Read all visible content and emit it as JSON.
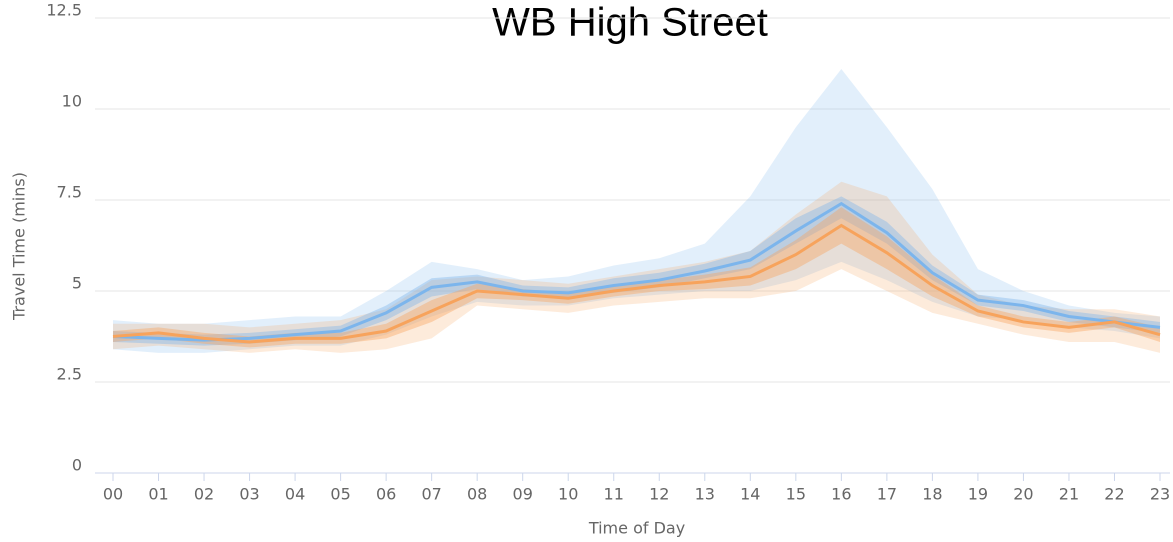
{
  "chart_data": {
    "type": "line",
    "title": "WB High Street",
    "x_label": "Time of Day",
    "y_label": "Travel Time (mins)",
    "categories": [
      "00",
      "01",
      "02",
      "03",
      "04",
      "05",
      "06",
      "07",
      "08",
      "09",
      "10",
      "11",
      "12",
      "13",
      "14",
      "15",
      "16",
      "17",
      "18",
      "19",
      "20",
      "21",
      "22",
      "23"
    ],
    "ylim": [
      0,
      12.5
    ],
    "yticks": [
      0,
      2.5,
      5,
      7.5,
      10,
      12.5
    ],
    "grid": true,
    "series": [
      {
        "color": "#7cb5ec",
        "values": [
          3.75,
          3.7,
          3.65,
          3.7,
          3.8,
          3.9,
          4.4,
          5.1,
          5.25,
          5.0,
          4.95,
          5.15,
          5.3,
          5.55,
          5.85,
          6.65,
          7.4,
          6.6,
          5.5,
          4.75,
          4.6,
          4.3,
          4.15,
          4.0
        ],
        "inner_high": [
          3.9,
          3.85,
          3.8,
          3.85,
          3.95,
          4.05,
          4.6,
          5.35,
          5.45,
          5.15,
          5.1,
          5.35,
          5.5,
          5.75,
          6.1,
          7.0,
          7.6,
          6.9,
          5.7,
          4.9,
          4.75,
          4.45,
          4.3,
          4.15
        ],
        "inner_low": [
          3.6,
          3.55,
          3.5,
          3.55,
          3.65,
          3.75,
          4.2,
          4.85,
          5.05,
          4.85,
          4.8,
          4.95,
          5.1,
          5.35,
          5.6,
          6.3,
          7.0,
          6.3,
          5.3,
          4.6,
          4.45,
          4.15,
          4.0,
          3.85
        ],
        "outer_high": [
          4.2,
          4.1,
          4.1,
          4.2,
          4.3,
          4.3,
          5.0,
          5.8,
          5.6,
          5.3,
          5.4,
          5.7,
          5.9,
          6.3,
          7.6,
          9.5,
          11.1,
          9.5,
          7.8,
          5.6,
          5.0,
          4.6,
          4.4,
          4.3
        ],
        "outer_low": [
          3.4,
          3.3,
          3.3,
          3.4,
          3.5,
          3.5,
          3.8,
          4.3,
          4.7,
          4.6,
          4.6,
          4.8,
          4.9,
          5.0,
          5.0,
          5.3,
          5.8,
          5.3,
          4.7,
          4.3,
          4.2,
          4.0,
          3.9,
          3.7
        ]
      },
      {
        "color": "#f7a35c",
        "values": [
          3.75,
          3.85,
          3.7,
          3.6,
          3.7,
          3.7,
          3.9,
          4.45,
          5.0,
          4.9,
          4.8,
          5.0,
          5.15,
          5.25,
          5.4,
          6.0,
          6.8,
          6.05,
          5.15,
          4.45,
          4.15,
          4.0,
          4.15,
          3.8
        ],
        "inner_high": [
          3.9,
          4.0,
          3.85,
          3.75,
          3.85,
          3.85,
          4.1,
          4.75,
          5.2,
          5.05,
          4.95,
          5.15,
          5.3,
          5.45,
          5.65,
          6.4,
          7.3,
          6.5,
          5.45,
          4.6,
          4.3,
          4.15,
          4.3,
          4.0
        ],
        "inner_low": [
          3.6,
          3.7,
          3.55,
          3.45,
          3.55,
          3.55,
          3.7,
          4.15,
          4.8,
          4.75,
          4.65,
          4.85,
          5.0,
          5.05,
          5.15,
          5.6,
          6.3,
          5.6,
          4.85,
          4.3,
          4.0,
          3.85,
          4.0,
          3.6
        ],
        "outer_high": [
          4.1,
          4.1,
          4.1,
          4.0,
          4.1,
          4.2,
          4.5,
          5.3,
          5.4,
          5.3,
          5.2,
          5.4,
          5.6,
          5.8,
          6.1,
          7.1,
          8.0,
          7.6,
          6.0,
          4.9,
          4.6,
          4.5,
          4.5,
          4.3
        ],
        "outer_low": [
          3.4,
          3.5,
          3.4,
          3.3,
          3.4,
          3.3,
          3.4,
          3.7,
          4.6,
          4.5,
          4.4,
          4.6,
          4.7,
          4.8,
          4.8,
          5.0,
          5.6,
          5.0,
          4.4,
          4.1,
          3.8,
          3.6,
          3.6,
          3.3
        ]
      }
    ]
  }
}
